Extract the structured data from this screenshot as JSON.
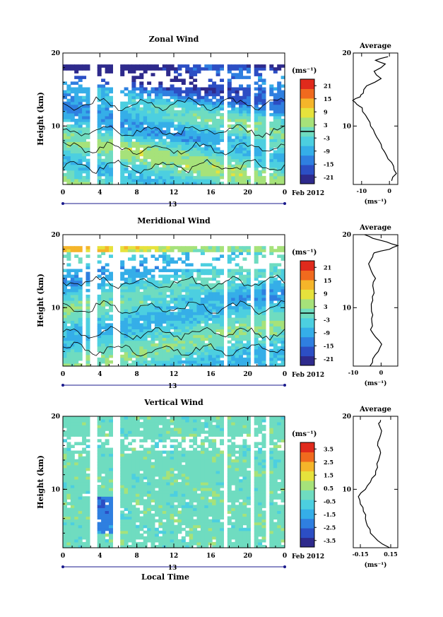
{
  "colors": {
    "scale": [
      "#2e2a8c",
      "#2c4ec4",
      "#2f7fe0",
      "#35aee8",
      "#4ccfe0",
      "#6fdcc0",
      "#a6e27a",
      "#e6e23c",
      "#f5b52a",
      "#f06a1e",
      "#e02a1c"
    ],
    "contour": "#000000",
    "time_bar": "#1a1a8c"
  },
  "chart_data": [
    {
      "type": "heatmap",
      "title": "Zonal Wind",
      "xlabel": "",
      "ylabel": "Height (km)",
      "xlim": [
        0,
        24
      ],
      "ylim": [
        2,
        20
      ],
      "x_ticks": [
        "0",
        "4",
        "8",
        "12",
        "16",
        "20",
        "0"
      ],
      "y_ticks": [
        "20",
        "10"
      ],
      "day_label": "13",
      "date_label": "Feb 2012",
      "colorbar": {
        "unit": "(ms⁻¹)",
        "min": -24,
        "max": 24,
        "ticks": [
          "21",
          "15",
          "9",
          "3",
          "-3",
          "-9",
          "-15",
          "-21"
        ],
        "zero_line": 0
      },
      "gaps_hours": [
        3.3,
        5.8,
        17.4,
        20.4,
        22.1
      ],
      "field": {
        "kind": "zonal",
        "scale": 24
      },
      "profile": {
        "title": "Average",
        "xlabel": "(ms⁻¹)",
        "xlim": [
          -13,
          3
        ],
        "x_ticks": [
          -10,
          0
        ],
        "y_ticks": [
          20,
          10
        ],
        "heights": [
          2.5,
          3.5,
          4.5,
          5.5,
          6.5,
          7.5,
          8.5,
          9.5,
          10.5,
          11.5,
          12.5,
          13.0,
          13.5,
          14.0,
          14.5,
          15.5,
          16.5,
          17.5,
          18.5,
          19.0,
          19.5
        ],
        "values": [
          0.8,
          2.5,
          1.5,
          -0.5,
          -1.8,
          -3.0,
          -4.6,
          -5.8,
          -7.0,
          -8.6,
          -9.8,
          -11.8,
          -13.2,
          -10.5,
          -9.4,
          -8.2,
          -3.0,
          -5.5,
          -1.5,
          -5.0,
          -0.5
        ]
      }
    },
    {
      "type": "heatmap",
      "title": "Meridional Wind",
      "xlabel": "",
      "ylabel": "Height (km)",
      "xlim": [
        0,
        24
      ],
      "ylim": [
        2,
        20
      ],
      "x_ticks": [
        "0",
        "4",
        "8",
        "12",
        "16",
        "20",
        "0"
      ],
      "y_ticks": [
        "20",
        "10"
      ],
      "day_label": "13",
      "date_label": "Feb 2012",
      "colorbar": {
        "unit": "(ms⁻¹)",
        "min": -24,
        "max": 24,
        "ticks": [
          "21",
          "15",
          "9",
          "3",
          "-3",
          "-9",
          "-15",
          "-21"
        ],
        "zero_line": 0
      },
      "gaps_hours": [
        2.4,
        3.3,
        5.8,
        17.4,
        20.4,
        22.1
      ],
      "field": {
        "kind": "meridional",
        "scale": 24
      },
      "profile": {
        "title": "Average",
        "xlabel": "(ms⁻¹)",
        "xlim": [
          -10,
          6
        ],
        "x_ticks": [
          -10,
          0
        ],
        "y_ticks": [
          20,
          10
        ],
        "heights": [
          2.0,
          3.0,
          4.0,
          5.0,
          6.0,
          7.0,
          8.0,
          9.0,
          10.0,
          11.0,
          12.0,
          13.0,
          14.0,
          15.0,
          16.0,
          17.0,
          17.5,
          18.0,
          18.5,
          19.0,
          19.5,
          20.0
        ],
        "values": [
          -4.0,
          -3.0,
          -1.0,
          0.2,
          -2.0,
          -3.8,
          -3.3,
          -3.0,
          -3.5,
          -3.0,
          -2.5,
          -3.0,
          -2.0,
          -3.5,
          -4.5,
          -3.0,
          -2.5,
          3.0,
          6.0,
          2.0,
          -3.0,
          -6.0
        ]
      }
    },
    {
      "type": "heatmap",
      "title": "Vertical Wind",
      "xlabel": "Local Time",
      "ylabel": "Height (km)",
      "xlim": [
        0,
        24
      ],
      "ylim": [
        2,
        20
      ],
      "x_ticks": [
        "0",
        "4",
        "8",
        "12",
        "16",
        "20",
        "0"
      ],
      "y_ticks": [
        "20",
        "10"
      ],
      "day_label": "13",
      "date_label": "Feb 2012",
      "colorbar": {
        "unit": "(ms⁻¹)",
        "min": -4,
        "max": 4,
        "ticks": [
          "3.5",
          "2.5",
          "1.5",
          "0.5",
          "-0.5",
          "-1.5",
          "-2.5",
          "-3.5"
        ],
        "zero_line": null
      },
      "gaps_hours": [
        3.3,
        5.8,
        17.4,
        20.4,
        22.1
      ],
      "field": {
        "kind": "vertical",
        "scale": 4
      },
      "profile": {
        "title": "Average",
        "xlabel": "(ms⁻¹)",
        "xlim": [
          -0.22,
          0.22
        ],
        "x_ticks": [
          -0.15,
          0.15
        ],
        "x_tick_labels": [
          "-0.15",
          "0.15"
        ],
        "y_ticks": [
          20,
          10
        ],
        "heights": [
          2.0,
          3.0,
          4.0,
          5.0,
          6.0,
          7.0,
          8.0,
          9.0,
          10.0,
          11.0,
          12.0,
          13.0,
          14.0,
          15.0,
          16.0,
          17.0,
          18.0,
          19.0,
          19.5
        ],
        "values": [
          0.14,
          0.02,
          -0.05,
          -0.08,
          -0.1,
          -0.12,
          -0.15,
          -0.17,
          -0.1,
          -0.05,
          0.0,
          0.02,
          0.03,
          0.05,
          0.02,
          0.04,
          0.06,
          0.03,
          0.05
        ]
      }
    }
  ]
}
